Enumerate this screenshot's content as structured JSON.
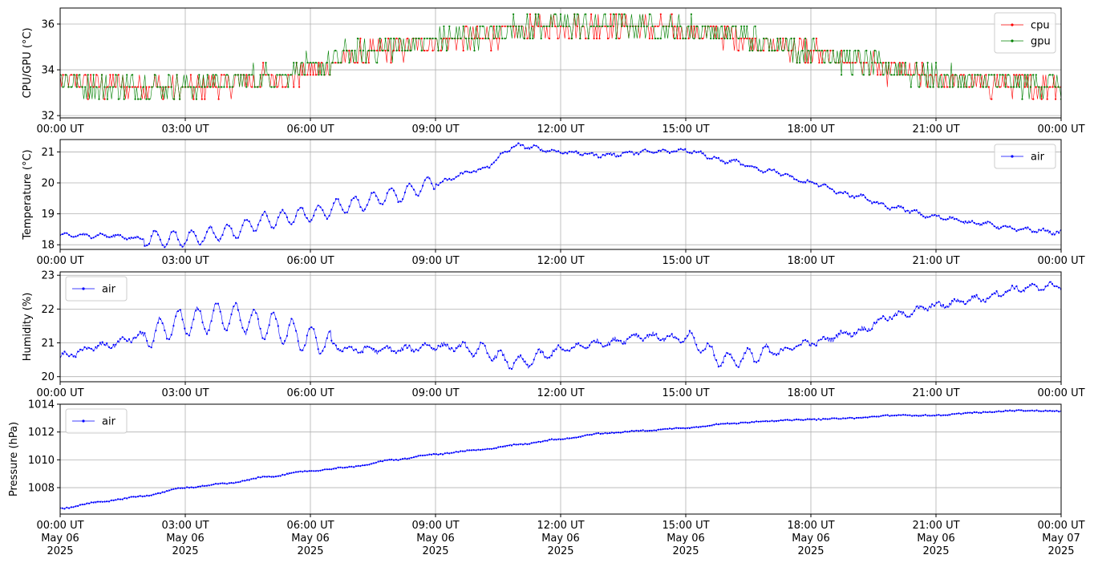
{
  "chart_data": [
    {
      "type": "line",
      "ylabel": "CPU/GPU (°C)",
      "x_range": [
        "2025-05-06T00:00Z",
        "2025-05-07T00:00Z"
      ],
      "ylim": [
        31.9,
        36.7
      ],
      "yticks": [
        32,
        34,
        36
      ],
      "x_ticks": [
        "00:00 UT",
        "03:00 UT",
        "06:00 UT",
        "09:00 UT",
        "12:00 UT",
        "15:00 UT",
        "18:00 UT",
        "21:00 UT",
        "00:00 UT"
      ],
      "grid": true,
      "legend_placement": "upper right",
      "series": [
        {
          "name": "cpu",
          "color": "#ff0000",
          "x": [
            0,
            1,
            2,
            3,
            4,
            5,
            6,
            7,
            8,
            9,
            10,
            11,
            12,
            13,
            14,
            15,
            16,
            17,
            18,
            19,
            20,
            21,
            22,
            23,
            24
          ],
          "y": [
            33.4,
            33.3,
            33.3,
            33.2,
            33.4,
            33.6,
            33.9,
            34.6,
            34.9,
            35.2,
            35.4,
            35.7,
            35.9,
            35.9,
            35.8,
            35.7,
            35.5,
            35.1,
            34.8,
            34.3,
            33.9,
            33.6,
            33.4,
            33.3,
            33.4
          ]
        },
        {
          "name": "gpu",
          "color": "#008000",
          "x": [
            0,
            1,
            2,
            3,
            4,
            5,
            6,
            7,
            8,
            9,
            10,
            11,
            12,
            13,
            14,
            15,
            16,
            17,
            18,
            19,
            20,
            21,
            22,
            23,
            24
          ],
          "y": [
            33.5,
            33.3,
            33.3,
            33.2,
            33.5,
            33.7,
            34.1,
            34.7,
            35.0,
            35.3,
            35.5,
            35.8,
            36.0,
            36.0,
            35.9,
            35.8,
            35.6,
            35.2,
            34.9,
            34.4,
            34.0,
            33.7,
            33.5,
            33.3,
            33.4
          ]
        }
      ]
    },
    {
      "type": "line",
      "ylabel": "Temperature (°C)",
      "x_range": [
        "2025-05-06T00:00Z",
        "2025-05-07T00:00Z"
      ],
      "ylim": [
        17.85,
        21.4
      ],
      "yticks": [
        18,
        19,
        20,
        21
      ],
      "x_ticks": [
        "00:00 UT",
        "03:00 UT",
        "06:00 UT",
        "09:00 UT",
        "12:00 UT",
        "15:00 UT",
        "18:00 UT",
        "21:00 UT",
        "00:00 UT"
      ],
      "grid": true,
      "legend_placement": "upper right",
      "series": [
        {
          "name": "air",
          "color": "#0000ff",
          "x": [
            0,
            1,
            2,
            3,
            4,
            5,
            6,
            7,
            8,
            9,
            10,
            11,
            12,
            13,
            14,
            15,
            16,
            17,
            18,
            19,
            20,
            21,
            22,
            23,
            24
          ],
          "y": [
            18.3,
            18.3,
            18.2,
            18.2,
            18.4,
            18.8,
            19.0,
            19.3,
            19.6,
            20.0,
            20.4,
            21.2,
            21.0,
            20.9,
            21.0,
            21.05,
            20.7,
            20.4,
            20.0,
            19.6,
            19.2,
            18.9,
            18.7,
            18.5,
            18.4
          ]
        }
      ]
    },
    {
      "type": "line",
      "ylabel": "Humidity (%)",
      "x_range": [
        "2025-05-06T00:00Z",
        "2025-05-07T00:00Z"
      ],
      "ylim": [
        19.85,
        23.1
      ],
      "yticks": [
        20,
        21,
        22,
        23
      ],
      "x_ticks": [
        "00:00 UT",
        "03:00 UT",
        "06:00 UT",
        "09:00 UT",
        "12:00 UT",
        "15:00 UT",
        "18:00 UT",
        "21:00 UT",
        "00:00 UT"
      ],
      "grid": true,
      "legend_placement": "upper left",
      "series": [
        {
          "name": "air",
          "color": "#0000ff",
          "x": [
            0,
            1,
            2,
            3,
            4,
            5,
            6,
            7,
            8,
            9,
            10,
            11,
            12,
            13,
            14,
            15,
            16,
            17,
            18,
            19,
            20,
            21,
            22,
            23,
            24
          ],
          "y": [
            20.6,
            20.9,
            21.2,
            21.6,
            21.8,
            21.5,
            21.1,
            20.8,
            20.8,
            20.9,
            20.8,
            20.4,
            20.8,
            21.0,
            21.2,
            21.1,
            20.5,
            20.7,
            21.0,
            21.3,
            21.8,
            22.1,
            22.3,
            22.6,
            22.7
          ]
        }
      ]
    },
    {
      "type": "line",
      "ylabel": "Pressure (hPa)",
      "x_range": [
        "2025-05-06T00:00Z",
        "2025-05-07T00:00Z"
      ],
      "ylim": [
        1006.1,
        1014.0
      ],
      "yticks": [
        1008,
        1010,
        1012,
        1014
      ],
      "x_ticks": [
        "00:00 UT\nMay 06\n2025",
        "03:00 UT\nMay 06\n2025",
        "06:00 UT\nMay 06\n2025",
        "09:00 UT\nMay 06\n2025",
        "12:00 UT\nMay 06\n2025",
        "15:00 UT\nMay 06\n2025",
        "18:00 UT\nMay 06\n2025",
        "21:00 UT\nMay 06\n2025",
        "00:00 UT\nMay 07\n2025"
      ],
      "grid": true,
      "legend_placement": "upper left",
      "series": [
        {
          "name": "air",
          "color": "#0000ff",
          "x": [
            0,
            1,
            2,
            3,
            4,
            5,
            6,
            7,
            8,
            9,
            10,
            11,
            12,
            13,
            14,
            15,
            16,
            17,
            18,
            19,
            20,
            21,
            22,
            23,
            24
          ],
          "y": [
            1006.5,
            1007.0,
            1007.4,
            1008.0,
            1008.3,
            1008.8,
            1009.2,
            1009.5,
            1010.0,
            1010.4,
            1010.7,
            1011.1,
            1011.5,
            1011.9,
            1012.1,
            1012.3,
            1012.6,
            1012.8,
            1012.9,
            1013.0,
            1013.2,
            1013.2,
            1013.4,
            1013.55,
            1013.5
          ]
        }
      ]
    }
  ]
}
